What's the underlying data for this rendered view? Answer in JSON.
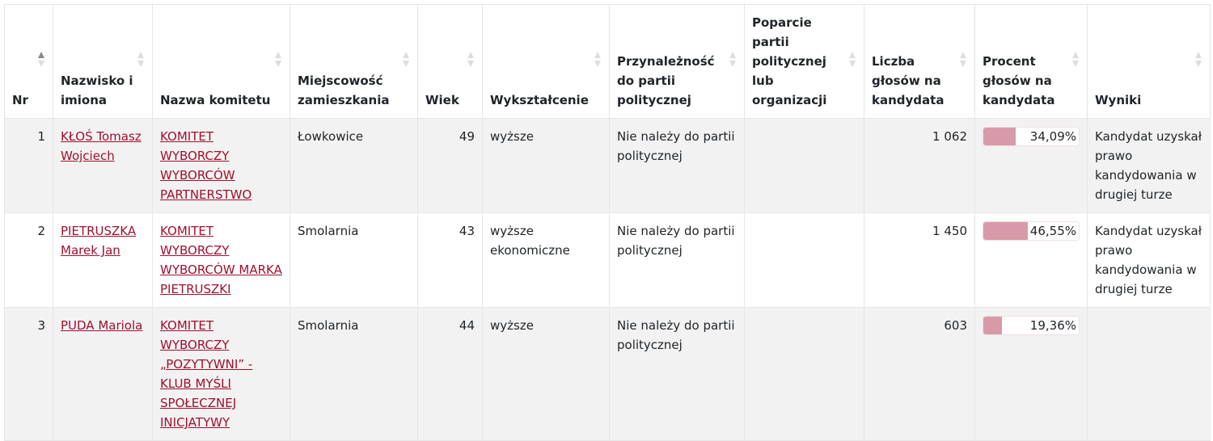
{
  "colors": {
    "link": "#a0102e",
    "bar_fill": "#d89aa8",
    "row_stripe": "#f2f2f2"
  },
  "headers": [
    "Nr",
    "Nazwisko i imiona",
    "Nazwa komitetu",
    "Miejscowość zamieszkania",
    "Wiek",
    "Wykształcenie",
    "Przynależność do partii politycznej",
    "Poparcie partii politycznej lub organizacji",
    "Liczba głosów na kandydata",
    "Procent głosów na kandydata",
    "Wyniki"
  ],
  "sort": {
    "column": "Nr",
    "direction": "ascending"
  },
  "rows": [
    {
      "nr": "1",
      "name": "KŁOŚ Tomasz Wojciech",
      "committee": "KOMITET WYBORCZY WYBORCÓW PARTNERSTWO",
      "city": "Łowkowice",
      "age": "49",
      "education": "wyższe",
      "party": "Nie należy do partii politycznej",
      "support": "",
      "votes": "1 062",
      "percent_label": "34,09%",
      "percent": 34.09,
      "result": "Kandydat uzyskał prawo kandydowania w drugiej turze"
    },
    {
      "nr": "2",
      "name": "PIETRUSZKA Marek Jan",
      "committee": "KOMITET WYBORCZY WYBORCÓW MARKA PIETRUSZKI",
      "city": "Smolarnia",
      "age": "43",
      "education": "wyższe ekonomiczne",
      "party": "Nie należy do partii politycznej",
      "support": "",
      "votes": "1 450",
      "percent_label": "46,55%",
      "percent": 46.55,
      "result": "Kandydat uzyskał prawo kandydowania w drugiej turze"
    },
    {
      "nr": "3",
      "name": "PUDA Mariola",
      "committee": "KOMITET WYBORCZY „POZYTYWNI” - KLUB MYŚLI SPOŁECZNEJ INICJATYWY",
      "city": "Smolarnia",
      "age": "44",
      "education": "wyższe",
      "party": "Nie należy do partii politycznej",
      "support": "",
      "votes": "603",
      "percent_label": "19,36%",
      "percent": 19.36,
      "result": ""
    }
  ]
}
